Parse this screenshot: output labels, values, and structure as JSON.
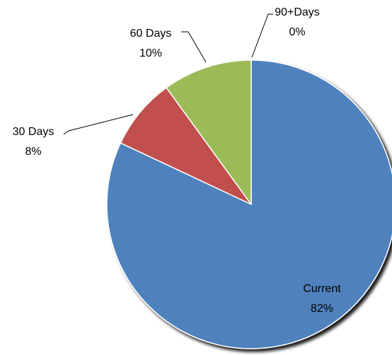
{
  "chart_data": {
    "type": "pie",
    "categories": [
      "Current",
      "30 Days",
      "60 Days",
      "90+Days"
    ],
    "values": [
      82,
      8,
      10,
      0
    ],
    "labels": [
      "82%",
      "8%",
      "10%",
      "0%"
    ],
    "start_angle_deg": 0,
    "direction": "clockwise",
    "colors": [
      "#4f81bd",
      "#c0504d",
      "#9bbb59",
      "#8064a2"
    ],
    "legend": "none",
    "data_label_position": "outside-with-leaders (Current inside)"
  }
}
